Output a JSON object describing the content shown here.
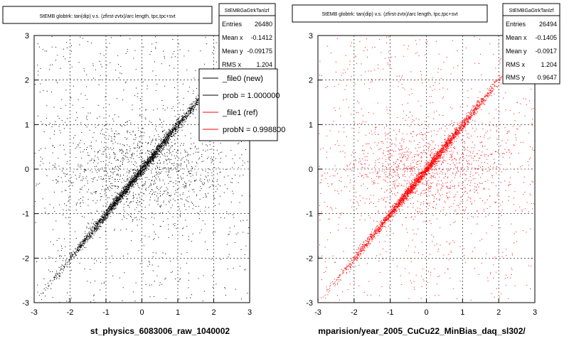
{
  "panels": [
    {
      "title": "StEMB globtrk: tan(dip) v.s. (zfirst-zvtx)/arc length, tpc,tpc+svt",
      "xlabel": "st_physics_6083006_raw_1040002",
      "stats": {
        "name": "StEMBGaGtrkTanlzf",
        "rows": [
          {
            "label": "Entries",
            "value": "26480"
          },
          {
            "label": "Mean x",
            "value": "-0.1412"
          },
          {
            "label": "Mean y",
            "value": "-0.09175"
          },
          {
            "label": "RMS x",
            "value": "1.204"
          }
        ]
      },
      "legend": [
        {
          "label": "_file0 (new)",
          "color": "#000000"
        },
        {
          "label": "prob = 1.000000",
          "color": "#000000"
        },
        {
          "label": "_file1 (ref)",
          "color": "#ff0000"
        },
        {
          "label": "probN = 0.998800",
          "color": "#ff0000"
        }
      ]
    },
    {
      "title": "StEMB globtrk: tan(dip) v.s. (zfirst-zvtx)/arc length, tpc,tpc+svt",
      "xlabel": "mparision/year_2005_CuCu22_MinBias_daq_sl302/",
      "stats": {
        "name": "StEMBGaGtrkTanlzf",
        "rows": [
          {
            "label": "Entries",
            "value": "26494"
          },
          {
            "label": "Mean x",
            "value": "-0.1405"
          },
          {
            "label": "Mean y",
            "value": "-0.0917"
          },
          {
            "label": "RMS x",
            "value": "1.204"
          },
          {
            "label": "RMS y",
            "value": "0.9647"
          }
        ]
      }
    }
  ],
  "chart_data": [
    {
      "type": "scatter",
      "title": "StEMB globtrk: tan(dip) v.s. (zfirst-zvtx)/arc length, tpc,tpc+svt",
      "xlabel": "st_physics_6083006_raw_1040002",
      "ylabel": "",
      "xlim": [
        -3,
        3
      ],
      "ylim": [
        -3,
        3
      ],
      "xticks": [
        "-3",
        "-2",
        "-1",
        "0",
        "1",
        "2",
        "3"
      ],
      "yticks": [
        "-3",
        "-2",
        "-1",
        "0",
        "1",
        "2",
        "3"
      ],
      "grid": true,
      "series": [
        {
          "color": "#000000",
          "points": []
        }
      ]
    },
    {
      "type": "scatter",
      "title": "StEMB globtrk: tan(dip) v.s. (zfirst-zvtx)/arc length, tpc,tpc+svt",
      "xlabel": "mparision/year_2005_CuCu22_MinBias_daq_sl302/",
      "ylabel": "",
      "xlim": [
        -3,
        3
      ],
      "ylim": [
        -3,
        3
      ],
      "xticks": [
        "-3",
        "-2",
        "-1",
        "0",
        "1",
        "2",
        "3"
      ],
      "yticks": [
        "-3",
        "-2",
        "-1",
        "0",
        "1",
        "2",
        "3"
      ],
      "grid": true,
      "series": [
        {
          "color": "#ff0000",
          "points": []
        }
      ]
    }
  ]
}
